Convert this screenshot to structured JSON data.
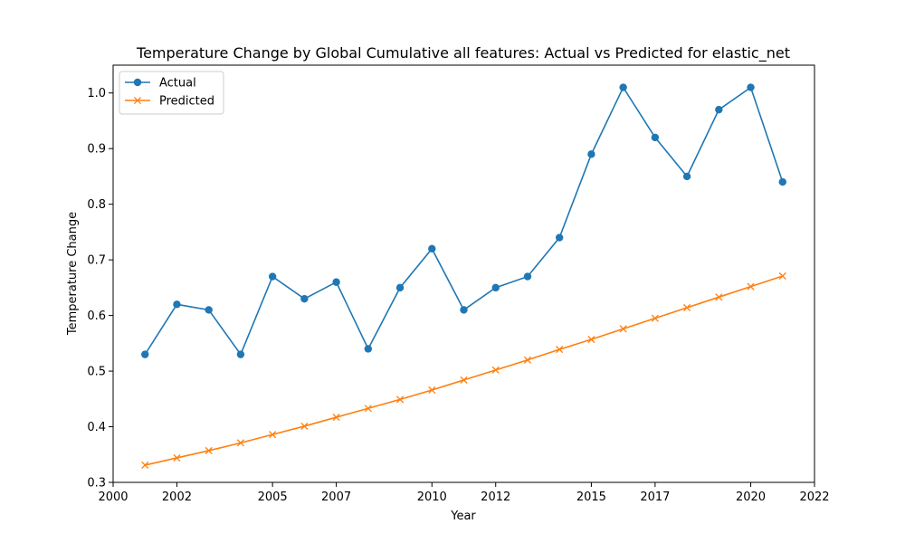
{
  "chart_data": {
    "type": "line",
    "title": "Temperature Change by Global Cumulative all features: Actual vs Predicted for elastic_net",
    "xlabel": "Year",
    "ylabel": "Temperature Change",
    "xlim": [
      2000,
      2022
    ],
    "ylim": [
      0.3,
      1.05
    ],
    "xticks": [
      2000,
      2002,
      2005,
      2007,
      2010,
      2012,
      2015,
      2017,
      2020,
      2022
    ],
    "xtick_labels": [
      "2000",
      "2002",
      "2005",
      "2007",
      "2010",
      "2012",
      "2015",
      "2017",
      "2020",
      "2022"
    ],
    "yticks": [
      0.3,
      0.4,
      0.5,
      0.6,
      0.7,
      0.8,
      0.9,
      1.0
    ],
    "ytick_labels": [
      "0.3",
      "0.4",
      "0.5",
      "0.6",
      "0.7",
      "0.8",
      "0.9",
      "1.0"
    ],
    "grid": false,
    "legend": "upper-left",
    "x": [
      2001.0,
      2002.0,
      2003.0,
      2004.0,
      2005.0,
      2006.0,
      2007.0,
      2008.0,
      2009.0,
      2010.0,
      2011.0,
      2012.0,
      2013.0,
      2014.0,
      2015.0,
      2016.0,
      2017.0,
      2018.0,
      2019.0,
      2020.0,
      2021.0
    ],
    "series": [
      {
        "name": "Actual",
        "color": "#1f77b4",
        "marker": "circle",
        "values": [
          0.53,
          0.62,
          0.61,
          0.53,
          0.67,
          0.63,
          0.66,
          0.54,
          0.65,
          0.72,
          0.61,
          0.65,
          0.67,
          0.74,
          0.89,
          1.01,
          0.92,
          0.85,
          0.97,
          1.01,
          0.84
        ]
      },
      {
        "name": "Predicted",
        "color": "#ff7f0e",
        "marker": "x",
        "values": [
          0.331,
          0.344,
          0.357,
          0.371,
          0.386,
          0.401,
          0.417,
          0.433,
          0.449,
          0.466,
          0.484,
          0.502,
          0.52,
          0.539,
          0.557,
          0.576,
          0.595,
          0.614,
          0.633,
          0.652,
          0.671
        ]
      }
    ]
  }
}
